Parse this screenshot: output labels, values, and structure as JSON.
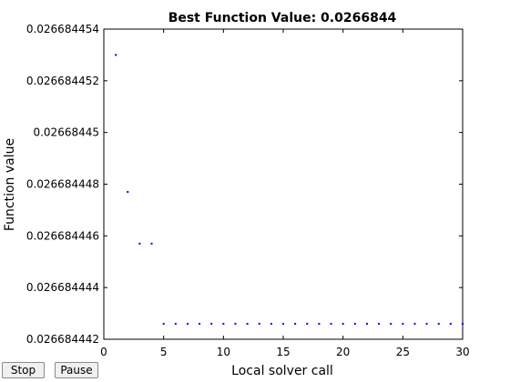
{
  "controls": {
    "stop_label": "Stop",
    "pause_label": "Pause"
  },
  "chart_data": {
    "type": "scatter",
    "title": "Best Function Value: 0.0266844",
    "xlabel": "Local solver call",
    "ylabel": "Function value",
    "xlim": [
      0,
      30
    ],
    "ylim": [
      0.026684442,
      0.026684454
    ],
    "xticks": [
      0,
      5,
      10,
      15,
      20,
      25,
      30
    ],
    "xtick_labels": [
      "0",
      "5",
      "10",
      "15",
      "20",
      "25",
      "30"
    ],
    "yticks": [
      0.026684442,
      0.026684444,
      0.026684446,
      0.026684448,
      0.02668445,
      0.026684452,
      0.026684454
    ],
    "ytick_labels": [
      "0.026684442",
      "0.026684444",
      "0.026684446",
      "0.026684448",
      "0.02668445",
      "0.026684452",
      "0.026684454"
    ],
    "grid": false,
    "marker_color": "#0000ff",
    "series": [
      {
        "x": [
          1,
          2,
          3,
          4,
          5,
          6,
          7,
          8,
          9,
          10,
          11,
          12,
          13,
          14,
          15,
          16,
          17,
          18,
          19,
          20,
          21,
          22,
          23,
          24,
          25,
          26,
          27,
          28,
          29,
          30
        ],
        "y": [
          0.026684453,
          0.0266844477,
          0.0266844457,
          0.0266844457,
          0.0266844426,
          0.0266844426,
          0.0266844426,
          0.0266844426,
          0.0266844426,
          0.0266844426,
          0.0266844426,
          0.0266844426,
          0.0266844426,
          0.0266844426,
          0.0266844426,
          0.0266844426,
          0.0266844426,
          0.0266844426,
          0.0266844426,
          0.0266844426,
          0.0266844426,
          0.0266844426,
          0.0266844426,
          0.0266844426,
          0.0266844426,
          0.0266844426,
          0.0266844426,
          0.0266844426,
          0.0266844426,
          0.0266844426
        ]
      }
    ]
  }
}
